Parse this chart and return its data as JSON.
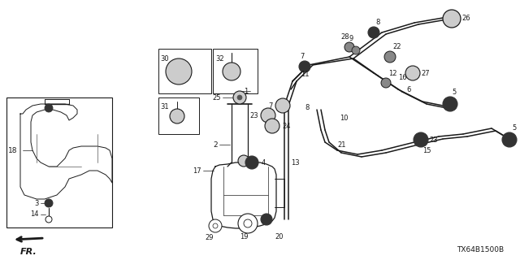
{
  "background_color": "#ffffff",
  "diagram_color": "#1a1a1a",
  "reference_code": "TX64B1500B",
  "fig_width": 6.4,
  "fig_height": 3.2,
  "dpi": 100
}
